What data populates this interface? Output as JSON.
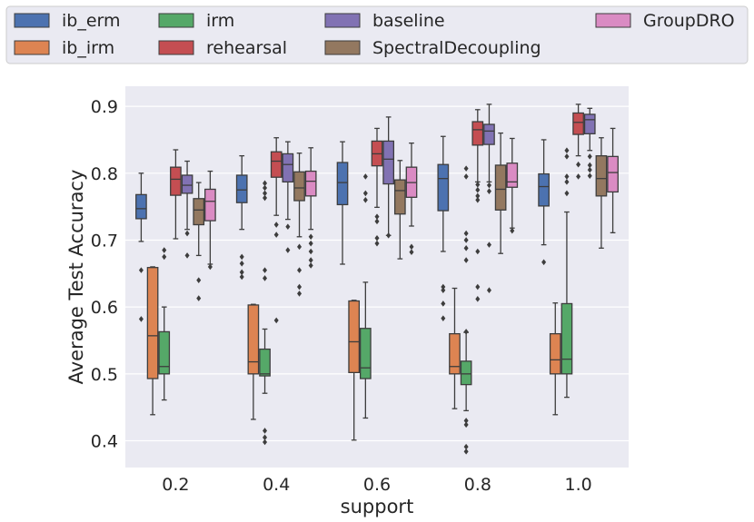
{
  "chart_data": {
    "type": "box",
    "xlabel": "support",
    "ylabel": "Average Test Accuracy",
    "ylim": [
      0.36,
      0.93
    ],
    "yticks": [
      0.4,
      0.5,
      0.6,
      0.7,
      0.8,
      0.9
    ],
    "ytick_labels": [
      "0.4",
      "0.5",
      "0.6",
      "0.7",
      "0.8",
      "0.9"
    ],
    "categories": [
      "0.2",
      "0.4",
      "0.6",
      "0.8",
      "1.0"
    ],
    "legend_position": "top",
    "series": [
      {
        "name": "ib_erm",
        "color": "#4c72b0",
        "boxes": [
          {
            "q1": 0.732,
            "median": 0.747,
            "q3": 0.768,
            "whislo": 0.698,
            "whishi": 0.8,
            "fliers": [
              0.655,
              0.582
            ]
          },
          {
            "q1": 0.756,
            "median": 0.775,
            "q3": 0.797,
            "whislo": 0.716,
            "whishi": 0.826,
            "fliers": [
              0.675,
              0.665,
              0.652,
              0.645
            ]
          },
          {
            "q1": 0.753,
            "median": 0.786,
            "q3": 0.816,
            "whislo": 0.664,
            "whishi": 0.847,
            "fliers": []
          },
          {
            "q1": 0.744,
            "median": 0.792,
            "q3": 0.813,
            "whislo": 0.683,
            "whishi": 0.855,
            "fliers": [
              0.63,
              0.625,
              0.605,
              0.583
            ]
          },
          {
            "q1": 0.751,
            "median": 0.78,
            "q3": 0.799,
            "whislo": 0.693,
            "whishi": 0.85,
            "fliers": [
              0.667
            ]
          }
        ]
      },
      {
        "name": "ib_irm",
        "color": "#dd8452",
        "boxes": [
          {
            "q1": 0.493,
            "median": 0.557,
            "q3": 0.659,
            "whislo": 0.439,
            "whishi": 0.66,
            "fliers": []
          },
          {
            "q1": 0.5,
            "median": 0.518,
            "q3": 0.603,
            "whislo": 0.432,
            "whishi": 0.604,
            "fliers": []
          },
          {
            "q1": 0.502,
            "median": 0.548,
            "q3": 0.609,
            "whislo": 0.401,
            "whishi": 0.61,
            "fliers": []
          },
          {
            "q1": 0.5,
            "median": 0.511,
            "q3": 0.56,
            "whislo": 0.448,
            "whishi": 0.628,
            "fliers": []
          },
          {
            "q1": 0.5,
            "median": 0.521,
            "q3": 0.56,
            "whislo": 0.439,
            "whishi": 0.606,
            "fliers": []
          }
        ]
      },
      {
        "name": "irm",
        "color": "#55a868",
        "boxes": [
          {
            "q1": 0.5,
            "median": 0.511,
            "q3": 0.563,
            "whislo": 0.461,
            "whishi": 0.6,
            "fliers": [
              0.685,
              0.675
            ]
          },
          {
            "q1": 0.497,
            "median": 0.5,
            "q3": 0.537,
            "whislo": 0.471,
            "whishi": 0.567,
            "fliers": [
              0.785,
              0.778,
              0.77,
              0.763,
              0.655,
              0.643,
              0.415,
              0.405,
              0.398
            ]
          },
          {
            "q1": 0.493,
            "median": 0.509,
            "q3": 0.568,
            "whislo": 0.434,
            "whishi": 0.637,
            "fliers": [
              0.795,
              0.77,
              0.76
            ]
          },
          {
            "q1": 0.484,
            "median": 0.5,
            "q3": 0.519,
            "whislo": 0.445,
            "whishi": 0.562,
            "fliers": [
              0.807,
              0.795,
              0.71,
              0.7,
              0.688,
              0.67,
              0.563,
              0.43,
              0.424,
              0.391,
              0.384
            ]
          },
          {
            "q1": 0.5,
            "median": 0.522,
            "q3": 0.605,
            "whislo": 0.465,
            "whishi": 0.742,
            "fliers": [
              0.834,
              0.825,
              0.795,
              0.787,
              0.77
            ]
          }
        ]
      },
      {
        "name": "rehearsal",
        "color": "#c44e52",
        "boxes": [
          {
            "q1": 0.767,
            "median": 0.791,
            "q3": 0.809,
            "whislo": 0.702,
            "whishi": 0.835,
            "fliers": []
          },
          {
            "q1": 0.794,
            "median": 0.818,
            "q3": 0.832,
            "whislo": 0.737,
            "whishi": 0.853,
            "fliers": [
              0.723,
              0.708,
              0.58
            ]
          },
          {
            "q1": 0.811,
            "median": 0.829,
            "q3": 0.848,
            "whislo": 0.749,
            "whishi": 0.867,
            "fliers": [
              0.735,
              0.728,
              0.703,
              0.695
            ]
          },
          {
            "q1": 0.842,
            "median": 0.865,
            "q3": 0.877,
            "whislo": 0.787,
            "whishi": 0.895,
            "fliers": [
              0.783,
              0.775,
              0.766,
              0.76,
              0.683,
              0.63,
              0.612
            ]
          },
          {
            "q1": 0.858,
            "median": 0.876,
            "q3": 0.89,
            "whislo": 0.826,
            "whishi": 0.903,
            "fliers": [
              0.813,
              0.795
            ]
          }
        ]
      },
      {
        "name": "baseline",
        "color": "#8172b3",
        "boxes": [
          {
            "q1": 0.77,
            "median": 0.782,
            "q3": 0.797,
            "whislo": 0.716,
            "whishi": 0.818,
            "fliers": [
              0.71,
              0.677
            ]
          },
          {
            "q1": 0.787,
            "median": 0.813,
            "q3": 0.829,
            "whislo": 0.731,
            "whishi": 0.847,
            "fliers": [
              0.72,
              0.685
            ]
          },
          {
            "q1": 0.784,
            "median": 0.821,
            "q3": 0.848,
            "whislo": 0.707,
            "whishi": 0.884,
            "fliers": [
              0.707
            ]
          },
          {
            "q1": 0.843,
            "median": 0.863,
            "q3": 0.873,
            "whislo": 0.787,
            "whishi": 0.903,
            "fliers": [
              0.782,
              0.773,
              0.693,
              0.625
            ]
          },
          {
            "q1": 0.859,
            "median": 0.88,
            "q3": 0.888,
            "whislo": 0.834,
            "whishi": 0.897,
            "fliers": [
              0.825,
              0.812,
              0.805,
              0.796
            ]
          }
        ]
      },
      {
        "name": "SpectralDecoupling",
        "color": "#937860",
        "boxes": [
          {
            "q1": 0.723,
            "median": 0.745,
            "q3": 0.762,
            "whislo": 0.677,
            "whishi": 0.786,
            "fliers": [
              0.64,
              0.613
            ]
          },
          {
            "q1": 0.759,
            "median": 0.778,
            "q3": 0.802,
            "whislo": 0.705,
            "whishi": 0.83,
            "fliers": [
              0.69,
              0.655,
              0.63,
              0.62
            ]
          },
          {
            "q1": 0.739,
            "median": 0.774,
            "q3": 0.79,
            "whislo": 0.672,
            "whishi": 0.819,
            "fliers": []
          },
          {
            "q1": 0.745,
            "median": 0.776,
            "q3": 0.812,
            "whislo": 0.68,
            "whishi": 0.86,
            "fliers": []
          },
          {
            "q1": 0.766,
            "median": 0.792,
            "q3": 0.826,
            "whislo": 0.688,
            "whishi": 0.853,
            "fliers": []
          }
        ]
      },
      {
        "name": "GroupDRO",
        "color": "#da8bc3",
        "boxes": [
          {
            "q1": 0.729,
            "median": 0.758,
            "q3": 0.776,
            "whislo": 0.664,
            "whishi": 0.803,
            "fliers": [
              0.66
            ]
          },
          {
            "q1": 0.766,
            "median": 0.788,
            "q3": 0.803,
            "whislo": 0.716,
            "whishi": 0.838,
            "fliers": [
              0.705,
              0.695,
              0.683,
              0.67,
              0.662
            ]
          },
          {
            "q1": 0.764,
            "median": 0.786,
            "q3": 0.809,
            "whislo": 0.721,
            "whishi": 0.845,
            "fliers": [
              0.69,
              0.682
            ]
          },
          {
            "q1": 0.779,
            "median": 0.787,
            "q3": 0.815,
            "whislo": 0.718,
            "whishi": 0.852,
            "fliers": [
              0.714
            ]
          },
          {
            "q1": 0.772,
            "median": 0.801,
            "q3": 0.825,
            "whislo": 0.711,
            "whishi": 0.867,
            "fliers": []
          }
        ]
      }
    ]
  }
}
